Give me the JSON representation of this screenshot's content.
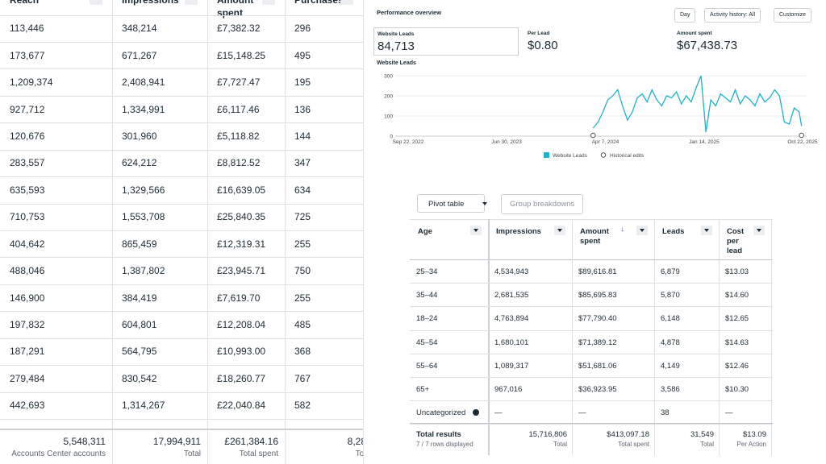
{
  "left_table": {
    "headers": [
      "Reach",
      "Impressions",
      "Amount spent",
      "Purchases"
    ],
    "rows": [
      [
        "113,446",
        "348,214",
        "£7,382.32",
        "296"
      ],
      [
        "173,677",
        "671,267",
        "£15,148.25",
        "495"
      ],
      [
        "1,209,374",
        "2,408,941",
        "£7,727.47",
        "195"
      ],
      [
        "927,712",
        "1,334,991",
        "£6,117.46",
        "136"
      ],
      [
        "120,676",
        "301,960",
        "£5,118.82",
        "144"
      ],
      [
        "283,557",
        "624,212",
        "£8,812.52",
        "347"
      ],
      [
        "635,593",
        "1,329,566",
        "£16,639.05",
        "634"
      ],
      [
        "710,753",
        "1,553,708",
        "£25,840.35",
        "725"
      ],
      [
        "404,642",
        "865,459",
        "£12,319.31",
        "255"
      ],
      [
        "488,046",
        "1,387,802",
        "£23,945.71",
        "750"
      ],
      [
        "146,900",
        "384,419",
        "£7,619.70",
        "255"
      ],
      [
        "197,832",
        "604,801",
        "£12,208.04",
        "485"
      ],
      [
        "187,291",
        "564,795",
        "£10,993.00",
        "368"
      ],
      [
        "279,484",
        "830,542",
        "£18,260.77",
        "767"
      ],
      [
        "442,693",
        "1,314,267",
        "£22,040.84",
        "582"
      ]
    ],
    "footer": [
      {
        "value": "5,548,311",
        "label": "Accounts Center accounts"
      },
      {
        "value": "17,994,911",
        "label": "Total"
      },
      {
        "value": "£261,384.16",
        "label": "Total spent"
      },
      {
        "value": "8,28",
        "label": "Tot"
      }
    ]
  },
  "performance": {
    "title": "Performance overview",
    "controls": [
      "Day",
      "Activity history: All",
      "Customize"
    ],
    "metrics": [
      {
        "label": "Website Leads",
        "value": "84,713"
      },
      {
        "label": "Per Lead",
        "value": "$0.80"
      },
      {
        "label": "Amount spent",
        "value": "$67,438.73"
      }
    ]
  },
  "chart_data": {
    "type": "line",
    "title": "Website Leads",
    "x": [
      "Mar 3, 2024",
      "Mar 17, 2024",
      "Mar 31, 2024",
      "Apr 14, 2024",
      "Apr 28, 2024",
      "May 12, 2024",
      "May 26, 2024",
      "Jun 9, 2024",
      "Jun 23, 2024",
      "Jul 7, 2024",
      "Jul 21, 2024",
      "Aug 4, 2024",
      "Aug 18, 2024",
      "Sep 1, 2024",
      "Sep 15, 2024",
      "Sep 29, 2024",
      "Oct 13, 2024",
      "Oct 27, 2024",
      "Nov 10, 2024",
      "Nov 24, 2024",
      "Dec 8, 2024",
      "Dec 22, 2024",
      "Jan 5, 2025",
      "Jan 19, 2025",
      "Feb 2, 2025",
      "Feb 16, 2025",
      "Mar 2, 2025",
      "Mar 16, 2025",
      "Mar 30, 2025",
      "Apr 13, 2025",
      "Apr 27, 2025",
      "May 11, 2025",
      "May 25, 2025",
      "Jun 8, 2025",
      "Jun 22, 2025",
      "Jul 6, 2025",
      "Jul 20, 2025",
      "Aug 3, 2025",
      "Aug 17, 2025",
      "Aug 31, 2025",
      "Sep 14, 2025",
      "Sep 28, 2025",
      "Oct 12, 2025",
      "Oct 19, 2025"
    ],
    "series": [
      {
        "name": "Website Leads",
        "color": "#1fb3c8",
        "values": [
          40,
          70,
          120,
          180,
          200,
          230,
          150,
          80,
          120,
          190,
          210,
          170,
          230,
          180,
          150,
          200,
          190,
          220,
          160,
          200,
          170,
          240,
          300,
          20,
          180,
          150,
          210,
          190,
          170,
          230,
          160,
          200,
          180,
          150,
          210,
          170,
          190,
          230,
          200,
          70,
          60,
          140,
          120,
          50
        ]
      }
    ],
    "ylim": [
      0,
      300
    ],
    "yticks": [
      0,
      100,
      200,
      300
    ],
    "grid": true,
    "xlim": [
      "Sep 22, 2022",
      "Oct 22, 2025"
    ],
    "xticks": [
      "Sep 22, 2022",
      "Jun 30, 2023",
      "Apr 7, 2024",
      "Jan 14, 2025",
      "Oct 22, 2025"
    ],
    "markers": {
      "name": "Historical edits",
      "x": [
        "Mar 3, 2024",
        "Oct 19, 2025"
      ]
    }
  },
  "pivot": {
    "toolbar": [
      "Pivot table",
      "Group breakdowns"
    ],
    "headers": [
      "Age",
      "Impressions",
      "Amount spent",
      "Leads",
      "Cost per lead"
    ],
    "rows": [
      [
        "25–34",
        "4,534,943",
        "$89,616.81",
        "6,879",
        "$13.03"
      ],
      [
        "35–44",
        "2,681,535",
        "$85,695.83",
        "5,870",
        "$14.60"
      ],
      [
        "18–24",
        "4,763,894",
        "$77,790.40",
        "6,148",
        "$12.65"
      ],
      [
        "45–54",
        "1,680,101",
        "$71,389.12",
        "4,878",
        "$14.63"
      ],
      [
        "55–64",
        "1,089,317",
        "$51,681.06",
        "4,149",
        "$12.46"
      ],
      [
        "65+",
        "967,016",
        "$36,923.95",
        "3,586",
        "$10.30"
      ],
      [
        "Uncategorized",
        "—",
        "—",
        "38",
        "—"
      ]
    ],
    "total": {
      "label": "Total results",
      "sub": "7 / 7 rows displayed",
      "values": [
        {
          "value": "15,716,806",
          "label": "Total"
        },
        {
          "value": "$413,097.18",
          "label": "Total spent"
        },
        {
          "value": "31,549",
          "label": "Total"
        },
        {
          "value": "$13.09",
          "label": "Per Action"
        }
      ]
    }
  }
}
